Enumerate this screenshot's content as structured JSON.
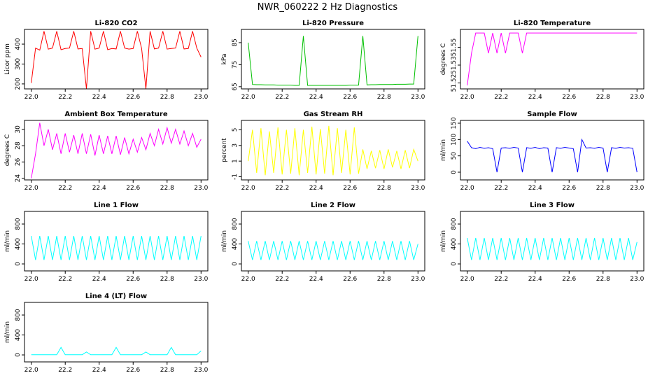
{
  "title": "NWR_060222  2 Hz Diagnostics",
  "chart_data": [
    {
      "type": "line",
      "title": "Li-820 CO2",
      "y_label": "Licor ppm",
      "color": "#ff0000",
      "x": [
        22,
        22.025,
        22.05,
        22.075,
        22.1,
        22.125,
        22.15,
        22.175,
        22.2,
        22.225,
        22.25,
        22.275,
        22.3,
        22.325,
        22.35,
        22.375,
        22.4,
        22.425,
        22.45,
        22.475,
        22.5,
        22.525,
        22.55,
        22.575,
        22.6,
        22.625,
        22.65,
        22.675,
        22.7,
        22.725,
        22.75,
        22.775,
        22.8,
        22.825,
        22.85,
        22.875,
        22.9,
        22.925,
        22.95,
        22.975,
        23
      ],
      "values": [
        205,
        380,
        370,
        465,
        375,
        380,
        465,
        372,
        378,
        380,
        465,
        376,
        378,
        175,
        465,
        375,
        380,
        465,
        372,
        378,
        376,
        465,
        380,
        375,
        378,
        465,
        378,
        175,
        465,
        376,
        380,
        465,
        375,
        378,
        380,
        465,
        376,
        378,
        465,
        380,
        335
      ],
      "xlim": [
        21.96,
        23.04
      ],
      "xticks": [
        {
          "value": 22,
          "label": "22.0"
        },
        22.2,
        22.4,
        22.6,
        22.8,
        {
          "value": 23,
          "label": "23.0"
        }
      ],
      "ylim": [
        175,
        474
      ],
      "yticks": [
        200,
        300,
        400
      ]
    },
    {
      "type": "line",
      "title": "Li-820 Pressure",
      "y_label": "kPa",
      "color": "#00c000",
      "x": [
        22,
        22.025,
        22.05,
        22.075,
        22.1,
        22.125,
        22.15,
        22.175,
        22.2,
        22.225,
        22.25,
        22.275,
        22.3,
        22.325,
        22.35,
        22.375,
        22.4,
        22.425,
        22.45,
        22.475,
        22.5,
        22.525,
        22.55,
        22.575,
        22.6,
        22.625,
        22.65,
        22.675,
        22.7,
        22.725,
        22.75,
        22.775,
        22.8,
        22.825,
        22.85,
        22.875,
        22.9,
        22.925,
        22.95,
        22.975,
        23
      ],
      "values": [
        85,
        66,
        65.9,
        65.9,
        65.8,
        65.8,
        65.8,
        65.7,
        65.7,
        65.7,
        65.7,
        65.6,
        65.6,
        88,
        65.6,
        65.6,
        65.6,
        65.6,
        65.6,
        65.6,
        65.6,
        65.6,
        65.6,
        65.6,
        65.7,
        65.7,
        65.7,
        88,
        65.8,
        65.9,
        65.9,
        66,
        66,
        66,
        66,
        66.1,
        66.1,
        66.1,
        66.2,
        66.2,
        88
      ],
      "xlim": [
        21.96,
        23.04
      ],
      "xticks": [
        {
          "value": 22,
          "label": "22.0"
        },
        22.2,
        22.4,
        22.6,
        22.8,
        {
          "value": 23,
          "label": "23.0"
        }
      ],
      "ylim": [
        64,
        91
      ],
      "yticks": [
        65,
        75,
        85
      ]
    },
    {
      "type": "line",
      "title": "Li-820 Temperature",
      "y_label": "degrees C",
      "color": "#ff00ff",
      "x": [
        22,
        22.025,
        22.05,
        22.075,
        22.1,
        22.125,
        22.15,
        22.175,
        22.2,
        22.225,
        22.25,
        22.275,
        22.3,
        22.325,
        22.35,
        22.375,
        22.4,
        22.425,
        22.45,
        22.475,
        22.5,
        22.525,
        22.55,
        22.575,
        22.6,
        22.625,
        22.65,
        22.675,
        22.7,
        22.725,
        22.75,
        22.775,
        22.8,
        22.825,
        22.85,
        22.875,
        22.9,
        22.925,
        22.95,
        22.975,
        23
      ],
      "values": [
        51.513,
        51.54,
        51.557,
        51.557,
        51.557,
        51.54,
        51.557,
        51.54,
        51.557,
        51.54,
        51.557,
        51.557,
        51.557,
        51.54,
        51.557,
        51.557,
        51.557,
        51.557,
        51.557,
        51.557,
        51.557,
        51.557,
        51.557,
        51.557,
        51.557,
        51.557,
        51.557,
        51.557,
        51.557,
        51.557,
        51.557,
        51.557,
        51.557,
        51.557,
        51.557,
        51.557,
        51.557,
        51.557,
        51.557,
        51.557,
        51.557
      ],
      "xlim": [
        21.96,
        23.04
      ],
      "xticks": [
        {
          "value": 22,
          "label": "22.0"
        },
        22.2,
        22.4,
        22.6,
        22.8,
        {
          "value": 23,
          "label": "23.0"
        }
      ],
      "ylim": [
        51.51,
        51.56
      ],
      "yticks": [
        {
          "value": 51.515,
          "label": "51.52"
        },
        {
          "value": 51.53,
          "label": "51.53"
        },
        {
          "value": 51.545,
          "label": "51.55"
        }
      ]
    },
    {
      "type": "line",
      "title": "Ambient Box Temperature",
      "y_label": "degrees C",
      "color": "#ff00ff",
      "x": [
        22,
        22.025,
        22.05,
        22.075,
        22.1,
        22.125,
        22.15,
        22.175,
        22.2,
        22.225,
        22.25,
        22.275,
        22.3,
        22.325,
        22.35,
        22.375,
        22.4,
        22.425,
        22.45,
        22.475,
        22.5,
        22.525,
        22.55,
        22.575,
        22.6,
        22.625,
        22.65,
        22.675,
        22.7,
        22.725,
        22.75,
        22.775,
        22.8,
        22.825,
        22.85,
        22.875,
        22.9,
        22.925,
        22.95,
        22.975,
        23
      ],
      "values": [
        24,
        27,
        30.8,
        28,
        30,
        27.5,
        29.5,
        27,
        29.5,
        27.2,
        29.3,
        27,
        29.5,
        27,
        29.4,
        26.8,
        29.3,
        27,
        29.2,
        27,
        29.2,
        26.9,
        29,
        27,
        28.8,
        27.2,
        29,
        27.5,
        29.5,
        28,
        30,
        28.2,
        30.2,
        28.3,
        30,
        28.2,
        29.8,
        28,
        29.5,
        27.8,
        28.8
      ],
      "xlim": [
        21.96,
        23.04
      ],
      "xticks": [
        {
          "value": 22,
          "label": "22.0"
        },
        22.2,
        22.4,
        22.6,
        22.8,
        {
          "value": 23,
          "label": "23.0"
        }
      ],
      "ylim": [
        23.8,
        31.1
      ],
      "yticks": [
        24,
        26,
        28,
        30
      ]
    },
    {
      "type": "line",
      "title": "Gas Stream RH",
      "y_label": "percent",
      "color": "#ffff00",
      "x": [
        22,
        22.025,
        22.05,
        22.075,
        22.1,
        22.125,
        22.15,
        22.175,
        22.2,
        22.225,
        22.25,
        22.275,
        22.3,
        22.325,
        22.35,
        22.375,
        22.4,
        22.425,
        22.45,
        22.475,
        22.5,
        22.525,
        22.55,
        22.575,
        22.6,
        22.625,
        22.65,
        22.675,
        22.7,
        22.725,
        22.75,
        22.775,
        22.8,
        22.825,
        22.85,
        22.875,
        22.9,
        22.925,
        22.95,
        22.975,
        23
      ],
      "values": [
        1,
        5,
        -0.5,
        5.2,
        -0.8,
        4.8,
        -0.5,
        5.3,
        -0.7,
        5,
        -0.6,
        5.2,
        -0.8,
        5,
        -0.5,
        5.4,
        -0.7,
        5.1,
        -0.6,
        5.5,
        -0.8,
        5.2,
        -0.5,
        5,
        -0.7,
        5.3,
        -0.6,
        2.5,
        0,
        2.3,
        0.1,
        2.4,
        0,
        2.5,
        0.2,
        2.3,
        0,
        2.4,
        0.1,
        2.5,
        1
      ],
      "xlim": [
        21.96,
        23.04
      ],
      "xticks": [
        {
          "value": 22,
          "label": "22.0"
        },
        22.2,
        22.4,
        22.6,
        22.8,
        {
          "value": 23,
          "label": "23.0"
        }
      ],
      "ylim": [
        -1.4,
        6.2
      ],
      "yticks": [
        -1,
        1,
        3,
        5
      ]
    },
    {
      "type": "line",
      "title": "Sample Flow",
      "y_label": "ml/min",
      "color": "#0000ff",
      "x": [
        22,
        22.025,
        22.05,
        22.075,
        22.1,
        22.125,
        22.15,
        22.175,
        22.2,
        22.225,
        22.25,
        22.275,
        22.3,
        22.325,
        22.35,
        22.375,
        22.4,
        22.425,
        22.45,
        22.475,
        22.5,
        22.525,
        22.55,
        22.575,
        22.6,
        22.625,
        22.65,
        22.675,
        22.7,
        22.725,
        22.75,
        22.775,
        22.8,
        22.825,
        22.85,
        22.875,
        22.9,
        22.925,
        22.95,
        22.975,
        23
      ],
      "values": [
        95,
        75,
        72,
        76,
        73,
        75,
        72,
        0,
        74,
        75,
        73,
        76,
        74,
        0,
        75,
        73,
        76,
        72,
        75,
        74,
        0,
        75,
        73,
        76,
        74,
        72,
        0,
        100,
        74,
        75,
        73,
        76,
        74,
        0,
        75,
        73,
        76,
        74,
        75,
        73,
        0
      ],
      "xlim": [
        21.96,
        23.04
      ],
      "xticks": [
        {
          "value": 22,
          "label": "22.0"
        },
        22.2,
        22.4,
        22.6,
        22.8,
        {
          "value": 23,
          "label": "23.0"
        }
      ],
      "ylim": [
        -23.6,
        158.6
      ],
      "yticks": [
        0,
        50,
        100,
        150
      ]
    },
    {
      "type": "line",
      "title": "Line 1 Flow",
      "y_label": "ml/min",
      "color": "#00ffff",
      "x": [
        22,
        22.025,
        22.05,
        22.075,
        22.1,
        22.125,
        22.15,
        22.175,
        22.2,
        22.225,
        22.25,
        22.275,
        22.3,
        22.325,
        22.35,
        22.375,
        22.4,
        22.425,
        22.45,
        22.475,
        22.5,
        22.525,
        22.55,
        22.575,
        22.6,
        22.625,
        22.65,
        22.675,
        22.7,
        22.725,
        22.75,
        22.775,
        22.8,
        22.825,
        22.85,
        22.875,
        22.9,
        22.925,
        22.95,
        22.975,
        23
      ],
      "values": [
        560,
        80,
        560,
        80,
        560,
        80,
        560,
        80,
        560,
        80,
        560,
        80,
        560,
        80,
        560,
        80,
        560,
        80,
        560,
        80,
        560,
        80,
        560,
        80,
        560,
        80,
        560,
        80,
        560,
        80,
        560,
        80,
        560,
        80,
        560,
        80,
        560,
        80,
        560,
        80,
        560
      ],
      "xlim": [
        21.96,
        23.04
      ],
      "xticks": [
        {
          "value": 22,
          "label": "22.0"
        },
        22.2,
        22.4,
        22.6,
        22.8,
        {
          "value": 23,
          "label": "23.0"
        }
      ],
      "ylim": [
        -140,
        1053
      ],
      "yticks": [
        0,
        400,
        800
      ]
    },
    {
      "type": "line",
      "title": "Line 2 Flow",
      "y_label": "ml/min",
      "color": "#00ffff",
      "x": [
        22,
        22.025,
        22.05,
        22.075,
        22.1,
        22.125,
        22.15,
        22.175,
        22.2,
        22.225,
        22.25,
        22.275,
        22.3,
        22.325,
        22.35,
        22.375,
        22.4,
        22.425,
        22.45,
        22.475,
        22.5,
        22.525,
        22.55,
        22.575,
        22.6,
        22.625,
        22.65,
        22.675,
        22.7,
        22.725,
        22.75,
        22.775,
        22.8,
        22.825,
        22.85,
        22.875,
        22.9,
        22.925,
        22.95,
        22.975,
        23
      ],
      "values": [
        460,
        80,
        460,
        80,
        460,
        80,
        460,
        80,
        460,
        80,
        460,
        80,
        460,
        80,
        460,
        80,
        460,
        80,
        460,
        80,
        460,
        80,
        460,
        80,
        460,
        80,
        460,
        80,
        460,
        80,
        460,
        80,
        460,
        80,
        460,
        80,
        460,
        80,
        460,
        80,
        400
      ],
      "xlim": [
        21.96,
        23.04
      ],
      "xticks": [
        {
          "value": 22,
          "label": "22.0"
        },
        22.2,
        22.4,
        22.6,
        22.8,
        {
          "value": 23,
          "label": "23.0"
        }
      ],
      "ylim": [
        -140,
        1053
      ],
      "yticks": [
        0,
        400,
        800
      ]
    },
    {
      "type": "line",
      "title": "Line 3 Flow",
      "y_label": "ml/min",
      "color": "#00ffff",
      "x": [
        22,
        22.025,
        22.05,
        22.075,
        22.1,
        22.125,
        22.15,
        22.175,
        22.2,
        22.225,
        22.25,
        22.275,
        22.3,
        22.325,
        22.35,
        22.375,
        22.4,
        22.425,
        22.45,
        22.475,
        22.5,
        22.525,
        22.55,
        22.575,
        22.6,
        22.625,
        22.65,
        22.675,
        22.7,
        22.725,
        22.75,
        22.775,
        22.8,
        22.825,
        22.85,
        22.875,
        22.9,
        22.925,
        22.95,
        22.975,
        23
      ],
      "values": [
        520,
        80,
        520,
        80,
        520,
        80,
        520,
        80,
        520,
        80,
        520,
        80,
        520,
        80,
        520,
        80,
        520,
        80,
        520,
        80,
        520,
        80,
        520,
        80,
        520,
        80,
        520,
        80,
        520,
        80,
        520,
        80,
        520,
        80,
        520,
        80,
        520,
        80,
        520,
        80,
        440
      ],
      "xlim": [
        21.96,
        23.04
      ],
      "xticks": [
        {
          "value": 22,
          "label": "22.0"
        },
        22.2,
        22.4,
        22.6,
        22.8,
        {
          "value": 23,
          "label": "23.0"
        }
      ],
      "ylim": [
        -140,
        1053
      ],
      "yticks": [
        0,
        400,
        800
      ]
    },
    {
      "type": "line",
      "title": "Line 4 (LT) Flow",
      "y_label": "ml/min",
      "color": "#00ffff",
      "x": [
        22,
        22.025,
        22.05,
        22.075,
        22.1,
        22.125,
        22.15,
        22.175,
        22.2,
        22.225,
        22.25,
        22.275,
        22.3,
        22.325,
        22.35,
        22.375,
        22.4,
        22.425,
        22.45,
        22.475,
        22.5,
        22.525,
        22.55,
        22.575,
        22.6,
        22.625,
        22.65,
        22.675,
        22.7,
        22.725,
        22.75,
        22.775,
        22.8,
        22.825,
        22.85,
        22.875,
        22.9,
        22.925,
        22.95,
        22.975,
        23
      ],
      "values": [
        5,
        5,
        5,
        5,
        5,
        5,
        5,
        150,
        5,
        5,
        5,
        5,
        5,
        60,
        5,
        5,
        5,
        5,
        5,
        5,
        150,
        5,
        5,
        5,
        5,
        5,
        5,
        60,
        5,
        5,
        5,
        5,
        5,
        150,
        5,
        5,
        5,
        5,
        5,
        5,
        80
      ],
      "xlim": [
        21.96,
        23.04
      ],
      "xticks": [
        {
          "value": 22,
          "label": "22.0"
        },
        22.2,
        22.4,
        22.6,
        22.8,
        {
          "value": 23,
          "label": "23.0"
        }
      ],
      "ylim": [
        -140,
        1053
      ],
      "yticks": [
        0,
        400,
        800
      ]
    }
  ]
}
